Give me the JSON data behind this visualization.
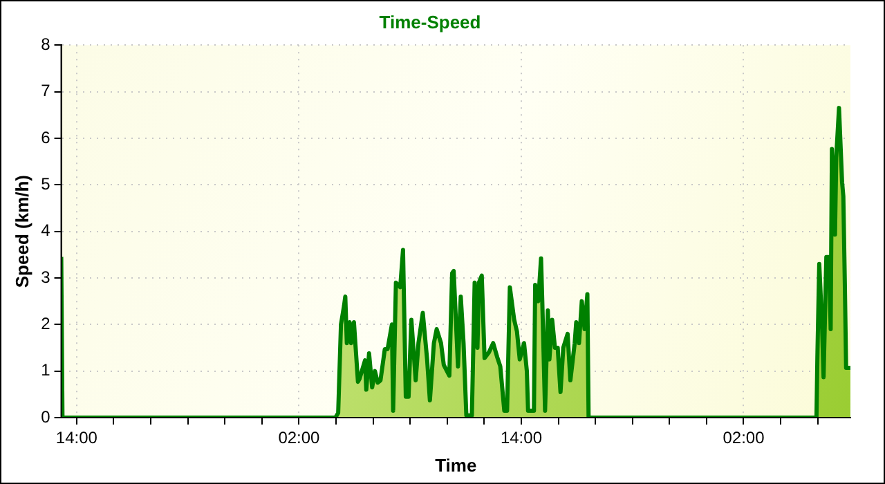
{
  "chart_data": {
    "type": "area",
    "title": "Time-Speed",
    "xlabel": "Time",
    "ylabel": "Speed (km/h)",
    "xlim": [
      "--01-01T13:10",
      "--01-03T07:46"
    ],
    "ylim": [
      0,
      8
    ],
    "xticks": [
      {
        "value": "--01-01T14:00",
        "label": "14:00"
      },
      {
        "value": "--01-01T16:00",
        "label": null
      },
      {
        "value": "--01-01T18:00",
        "label": null
      },
      {
        "value": "--01-01T20:00",
        "label": null
      },
      {
        "value": "--01-01T22:00",
        "label": null
      },
      {
        "value": "--01-02T00:00",
        "label": null
      },
      {
        "value": "--01-02T02:00",
        "label": "02:00"
      },
      {
        "value": "--01-02T04:00",
        "label": null
      },
      {
        "value": "--01-02T06:00",
        "label": null
      },
      {
        "value": "--01-02T08:00",
        "label": null
      },
      {
        "value": "--01-02T10:00",
        "label": null
      },
      {
        "value": "--01-02T12:00",
        "label": null
      },
      {
        "value": "--01-02T14:00",
        "label": "14:00"
      },
      {
        "value": "--01-02T16:00",
        "label": null
      },
      {
        "value": "--01-02T18:00",
        "label": null
      },
      {
        "value": "--01-02T20:00",
        "label": null
      },
      {
        "value": "--01-02T22:00",
        "label": null
      },
      {
        "value": "--01-03T00:00",
        "label": null
      },
      {
        "value": "--01-03T02:00",
        "label": "02:00"
      },
      {
        "value": "--01-03T04:00",
        "label": null
      },
      {
        "value": "--01-03T06:00",
        "label": null
      }
    ],
    "yticks": [
      0,
      1,
      2,
      3,
      4,
      5,
      6,
      7,
      8
    ],
    "grid": true,
    "series": [
      {
        "color": "#008000",
        "x": [
          "--01-01T13:10",
          "--01-01T13:14",
          "--01-02T03:58",
          "--01-02T04:07",
          "--01-02T04:16",
          "--01-02T04:26",
          "--01-02T04:30",
          "--01-02T04:35",
          "--01-02T04:44",
          "--01-02T04:49",
          "--01-02T04:58",
          "--01-02T05:11",
          "--01-02T05:16",
          "--01-02T05:34",
          "--01-02T05:38",
          "--01-02T05:47",
          "--01-02T05:57",
          "--01-02T06:06",
          "--01-02T06:15",
          "--01-02T06:24",
          "--01-02T06:38",
          "--01-02T06:47",
          "--01-02T07:01",
          "--01-02T07:05",
          "--01-02T07:14",
          "--01-02T07:28",
          "--01-02T07:37",
          "--01-02T07:46",
          "--01-02T07:55",
          "--01-02T08:04",
          "--01-02T08:18",
          "--01-02T08:27",
          "--01-02T08:41",
          "--01-02T08:55",
          "--01-02T09:04",
          "--01-02T09:17",
          "--01-02T09:26",
          "--01-02T09:40",
          "--01-02T09:49",
          "--01-02T10:07",
          "--01-02T10:16",
          "--01-02T10:21",
          "--01-02T10:35",
          "--01-02T10:44",
          "--01-02T10:53",
          "--01-02T11:02",
          "--01-02T11:20",
          "--01-02T11:29",
          "--01-02T11:38",
          "--01-02T11:43",
          "--01-02T11:52",
          "--01-02T12:01",
          "--01-02T12:15",
          "--01-02T12:29",
          "--01-02T12:42",
          "--01-02T12:52",
          "--01-02T13:05",
          "--01-02T13:14",
          "--01-02T13:23",
          "--01-02T13:37",
          "--01-02T13:46",
          "--01-02T13:55",
          "--01-02T14:09",
          "--01-02T14:18",
          "--01-02T14:22",
          "--01-02T14:41",
          "--01-02T14:45",
          "--01-02T14:55",
          "--01-02T15:04",
          "--01-02T15:08",
          "--01-02T15:17",
          "--01-02T15:26",
          "--01-02T15:31",
          "--01-02T15:40",
          "--01-02T15:49",
          "--01-02T15:58",
          "--01-02T16:07",
          "--01-02T16:16",
          "--01-02T16:30",
          "--01-02T16:39",
          "--01-02T16:53",
          "--01-02T16:58",
          "--01-02T17:07",
          "--01-02T17:16",
          "--01-02T17:25",
          "--01-02T17:34",
          "--01-02T17:38",
          "--01-03T05:56",
          "--01-03T05:59",
          "--01-03T06:05",
          "--01-03T06:14",
          "--01-03T06:19",
          "--01-03T06:28",
          "--01-03T06:37",
          "--01-03T06:42",
          "--01-03T06:46",
          "--01-03T06:56",
          "--01-03T07:00",
          "--01-03T07:09",
          "--01-03T07:19",
          "--01-03T07:23",
          "--01-03T07:28",
          "--01-03T07:32",
          "--01-03T07:46"
        ],
        "values": [
          3.45,
          0,
          0,
          0.1,
          2.0,
          2.4,
          2.6,
          1.6,
          2.05,
          1.6,
          2.05,
          0.77,
          0.83,
          1.23,
          0.6,
          1.38,
          0.65,
          1.0,
          0.75,
          0.8,
          1.47,
          1.47,
          2.0,
          0.15,
          2.9,
          2.8,
          3.6,
          0.45,
          0.45,
          2.1,
          0.8,
          1.6,
          2.25,
          1.25,
          0.37,
          1.6,
          1.9,
          1.6,
          1.13,
          0.9,
          3.1,
          3.15,
          1.1,
          2.6,
          1.6,
          0.05,
          0.05,
          2.9,
          1.5,
          2.9,
          3.05,
          1.28,
          1.4,
          1.6,
          1.3,
          1.1,
          0.15,
          0.15,
          2.8,
          2.1,
          1.85,
          1.25,
          1.6,
          1.0,
          0.15,
          0.15,
          2.85,
          2.5,
          3.42,
          2.5,
          0.15,
          2.3,
          1.25,
          2.1,
          1.5,
          1.5,
          0.55,
          1.5,
          1.8,
          0.8,
          1.6,
          2.05,
          1.6,
          2.5,
          1.9,
          2.65,
          0,
          0,
          1.3,
          3.3,
          2.0,
          0.87,
          3.45,
          3.45,
          1.9,
          5.77,
          3.93,
          5.58,
          6.65,
          5.06,
          4.75,
          2.82,
          1.07,
          1.07
        ]
      }
    ]
  }
}
